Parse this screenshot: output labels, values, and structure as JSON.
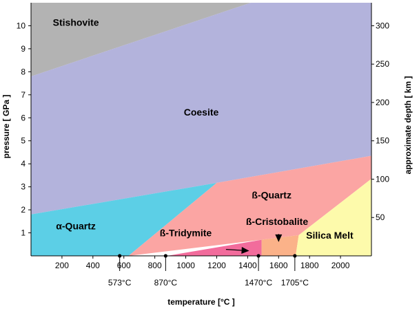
{
  "chart_data": {
    "type": "area",
    "title": "",
    "xlabel": "temperature [°C ]",
    "ylabel": "pressure [ GPa ]",
    "y2label": "approximate depth [ km ]",
    "xlim": [
      0,
      2200
    ],
    "ylim": [
      0,
      11
    ],
    "y2lim": [
      0,
      330
    ],
    "grid": false,
    "x_ticks": [
      200,
      400,
      600,
      800,
      1000,
      1200,
      1400,
      1600,
      1800,
      2000
    ],
    "y_ticks": [
      1,
      2,
      3,
      4,
      5,
      6,
      7,
      8,
      9,
      10
    ],
    "y2_ticks": [
      50,
      100,
      150,
      200,
      250,
      300
    ],
    "regions": [
      {
        "name": "Stishovite",
        "color": "#b3b3b3",
        "label_at": [
          290,
          10
        ],
        "polygon": [
          [
            0,
            7.8
          ],
          [
            0,
            11
          ],
          [
            1420,
            11
          ]
        ]
      },
      {
        "name": "Coesite",
        "color": "#b3b3dc",
        "label_at": [
          1100,
          6.1
        ],
        "polygon": [
          [
            0,
            1.8
          ],
          [
            0,
            7.8
          ],
          [
            1420,
            11
          ],
          [
            2200,
            11
          ],
          [
            2200,
            4.35
          ],
          [
            1200,
            3.17
          ]
        ]
      },
      {
        "name": "α-Quartz",
        "color": "#5ccfe6",
        "label_at": [
          290,
          1.15
        ],
        "polygon": [
          [
            0,
            0
          ],
          [
            0,
            1.8
          ],
          [
            1200,
            3.17
          ],
          [
            630,
            0
          ]
        ]
      },
      {
        "name": "ß-Quartz",
        "color": "#fba5a3",
        "label_at": [
          1555,
          2.5
        ],
        "polygon": [
          [
            630,
            0
          ],
          [
            1200,
            3.17
          ],
          [
            2200,
            4.35
          ],
          [
            2200,
            3.35
          ],
          [
            1730,
            0.9
          ],
          [
            1490,
            0.7
          ]
        ]
      },
      {
        "name": "ß-Tridymite",
        "color": "#fba5a3",
        "label_at": [
          1000,
          0.85
        ],
        "polygon": []
      },
      {
        "name": "ß-Tridymite field",
        "color": "#f26c9c",
        "label_at": null,
        "polygon": [
          [
            880,
            0
          ],
          [
            1490,
            0.7
          ],
          [
            1490,
            0
          ]
        ]
      },
      {
        "name": "ß-Cristobalite",
        "color": "#fbb289",
        "label_at": [
          1590,
          1.35
        ],
        "polygon": [
          [
            1490,
            0
          ],
          [
            1490,
            0.7
          ],
          [
            1730,
            0.9
          ],
          [
            1710,
            0
          ]
        ]
      },
      {
        "name": "Silica Melt",
        "color": "#fdfaab",
        "label_at": [
          1930,
          0.75
        ],
        "polygon": [
          [
            1710,
            0
          ],
          [
            1730,
            0.9
          ],
          [
            2200,
            3.35
          ],
          [
            2200,
            0
          ]
        ]
      }
    ],
    "annotations": [
      {
        "text": "573°C",
        "x": 573
      },
      {
        "text": "870°C",
        "x": 870
      },
      {
        "text": "1470°C",
        "x": 1470
      },
      {
        "text": "1705°C",
        "x": 1705
      }
    ],
    "arrows": [
      {
        "from": [
          1260,
          0.28
        ],
        "to": [
          1410,
          0.22
        ]
      },
      {
        "from": [
          1600,
          0.95
        ],
        "to": [
          1600,
          0.6
        ]
      }
    ]
  }
}
